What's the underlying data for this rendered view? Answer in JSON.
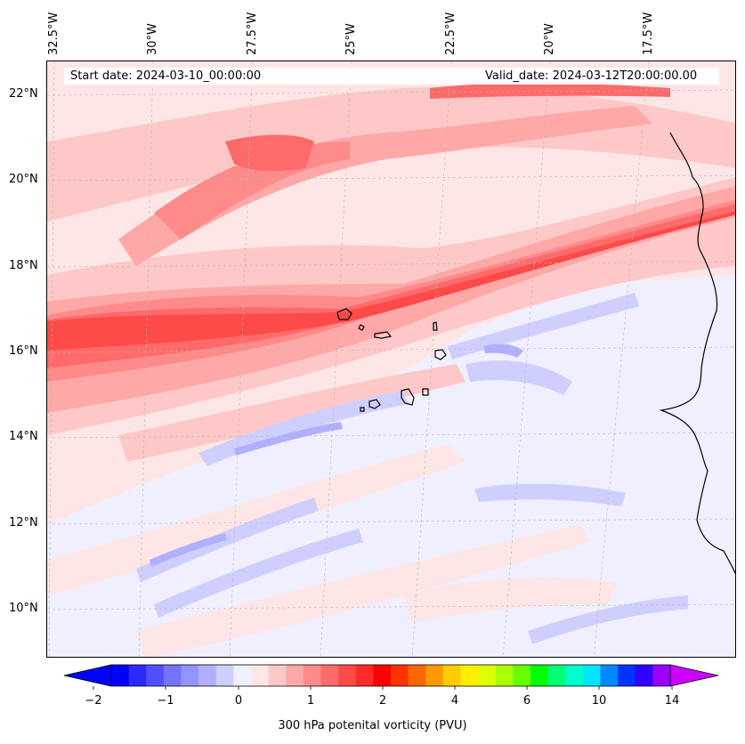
{
  "header": {
    "start_date": "Start date: 2024-03-10_00:00:00",
    "valid_date": "Valid_date: 2024-03-12T20:00:00.00"
  },
  "axes": {
    "lon_labels": [
      "32.5°W",
      "30°W",
      "27.5°W",
      "25°W",
      "22.5°W",
      "20°W",
      "17.5°W"
    ],
    "lat_labels": [
      "22°N",
      "20°N",
      "18°N",
      "16°N",
      "14°N",
      "12°N",
      "10°N"
    ]
  },
  "colorbar": {
    "label": "300 hPa potenital vorticity (PVU)",
    "tick_labels": [
      "−2",
      "−1",
      "0",
      "1",
      "2",
      "4",
      "6",
      "10",
      "14"
    ],
    "colors": [
      "#0000ff",
      "#2a2aff",
      "#5050ff",
      "#7373ff",
      "#9393ff",
      "#b0b0ff",
      "#cfcfff",
      "#efefff",
      "#ffe6e6",
      "#ffc8c8",
      "#ffa8a8",
      "#ff8a8a",
      "#ff6a6a",
      "#ff4a4a",
      "#ff2a2a",
      "#ff0000",
      "#ff3300",
      "#ff6600",
      "#ff9900",
      "#ffcc00",
      "#ffee00",
      "#ddff00",
      "#aaff00",
      "#66ff00",
      "#00ff00",
      "#00ff77",
      "#00ffcc",
      "#00e5ff",
      "#0088ff",
      "#0033ff",
      "#3300ff",
      "#9900ff"
    ],
    "under_color": "#0000ff",
    "over_color": "#cc00ff"
  },
  "map_colors": {
    "background": "#efefff",
    "light_blue": "#cfcfff",
    "blue": "#b0b0ff",
    "pale_pink": "#ffe6e6",
    "light_pink": "#ffc8c8",
    "pink": "#ffa8a8",
    "red1": "#ff8a8a",
    "red2": "#ff6a6a",
    "red3": "#ff4a4a",
    "coast": "#000000"
  }
}
